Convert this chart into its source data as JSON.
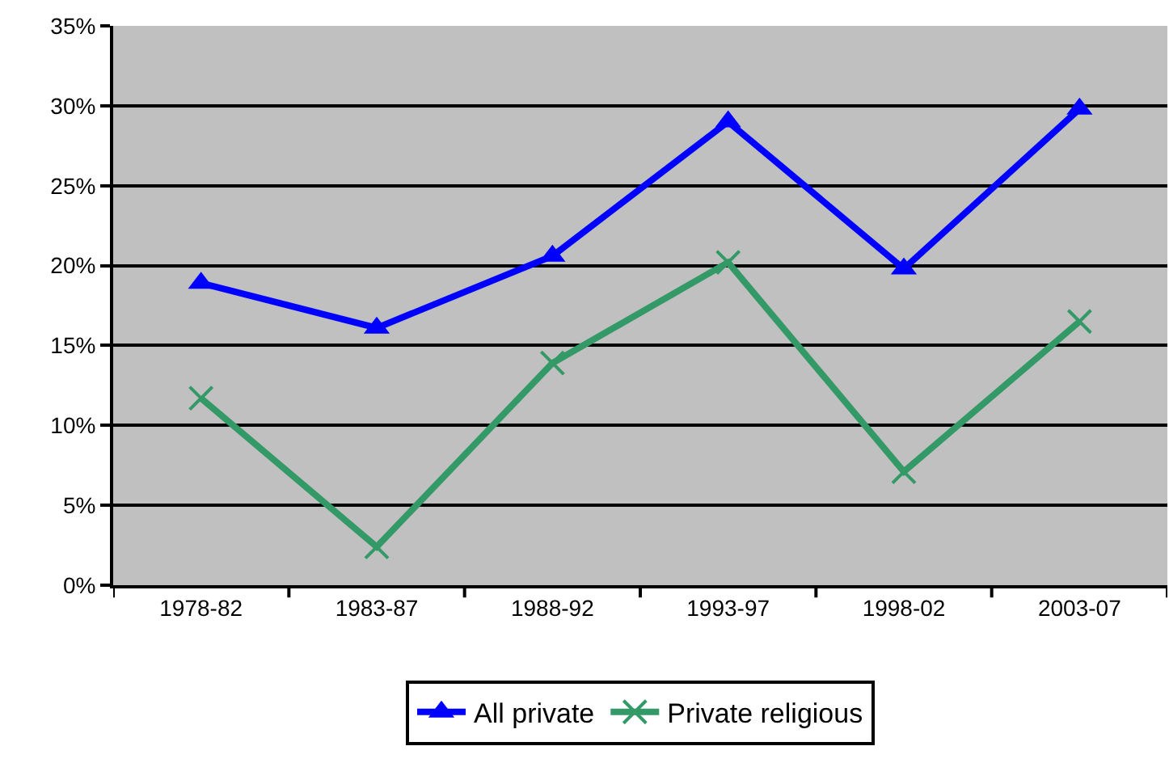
{
  "chart_data": {
    "type": "line",
    "categories": [
      "1978-82",
      "1983-87",
      "1988-92",
      "1993-97",
      "1998-02",
      "2003-07"
    ],
    "series": [
      {
        "name": "All private",
        "color": "#0000ff",
        "marker": "triangle",
        "values": [
          18.9,
          16.1,
          20.6,
          29.0,
          19.8,
          29.8
        ]
      },
      {
        "name": "Private religious",
        "color": "#339966",
        "marker": "cross",
        "values": [
          11.7,
          2.4,
          13.9,
          20.2,
          7.1,
          16.5
        ]
      }
    ],
    "ylim": [
      0,
      35
    ],
    "yticks": [
      {
        "value": 0,
        "label": "0%"
      },
      {
        "value": 5,
        "label": "5%"
      },
      {
        "value": 10,
        "label": "10%"
      },
      {
        "value": 15,
        "label": "15%"
      },
      {
        "value": 20,
        "label": "20%"
      },
      {
        "value": 25,
        "label": "25%"
      },
      {
        "value": 30,
        "label": "30%"
      },
      {
        "value": 35,
        "label": "35%"
      }
    ],
    "grid": "y",
    "legend": "bottom"
  }
}
